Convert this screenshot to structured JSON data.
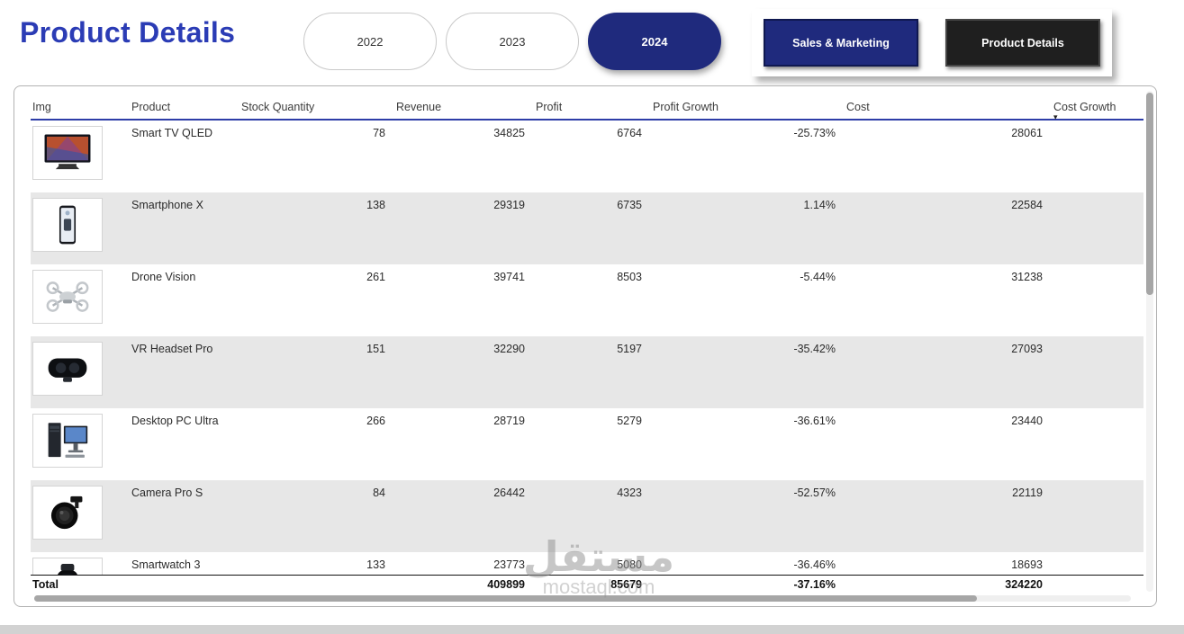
{
  "page": {
    "title": "Product Details"
  },
  "year_filters": [
    {
      "label": "2022",
      "selected": false
    },
    {
      "label": "2023",
      "selected": false
    },
    {
      "label": "2024",
      "selected": true
    }
  ],
  "nav_buttons": [
    {
      "label": "Sales & Marketing"
    },
    {
      "label": "Product Details"
    }
  ],
  "table": {
    "columns": [
      "Img",
      "Product",
      "Stock Quantity",
      "Revenue",
      "Profit",
      "Profit Growth",
      "Cost",
      "Cost Growth"
    ],
    "sorted_by": "Cost Growth",
    "sort_direction": "descending",
    "rows": [
      {
        "icon": "tv",
        "product": "Smart TV QLED",
        "stock": "78",
        "revenue": "34825",
        "profit": "6764",
        "profit_growth": "-25.73%",
        "cost": "28061",
        "cost_growth": ""
      },
      {
        "icon": "phone",
        "product": "Smartphone X",
        "stock": "138",
        "revenue": "29319",
        "profit": "6735",
        "profit_growth": "1.14%",
        "cost": "22584",
        "cost_growth": ""
      },
      {
        "icon": "drone",
        "product": "Drone Vision",
        "stock": "261",
        "revenue": "39741",
        "profit": "8503",
        "profit_growth": "-5.44%",
        "cost": "31238",
        "cost_growth": ""
      },
      {
        "icon": "vr",
        "product": "VR Headset Pro",
        "stock": "151",
        "revenue": "32290",
        "profit": "5197",
        "profit_growth": "-35.42%",
        "cost": "27093",
        "cost_growth": ""
      },
      {
        "icon": "pc",
        "product": "Desktop PC Ultra",
        "stock": "266",
        "revenue": "28719",
        "profit": "5279",
        "profit_growth": "-36.61%",
        "cost": "23440",
        "cost_growth": ""
      },
      {
        "icon": "camera",
        "product": "Camera Pro S",
        "stock": "84",
        "revenue": "26442",
        "profit": "4323",
        "profit_growth": "-52.57%",
        "cost": "22119",
        "cost_growth": ""
      },
      {
        "icon": "watch",
        "product": "Smartwatch 3",
        "stock": "133",
        "revenue": "23773",
        "profit": "5080",
        "profit_growth": "-36.46%",
        "cost": "18693",
        "cost_growth": ""
      }
    ],
    "total": {
      "label": "Total",
      "product": "",
      "stock": "",
      "revenue": "409899",
      "profit": "85679",
      "profit_growth": "-37.16%",
      "cost": "324220",
      "cost_growth": ""
    }
  },
  "watermark": {
    "line1": "مستقل",
    "line2": "mostaql.com"
  },
  "icons": {
    "sort_descending": "▾"
  },
  "colors": {
    "title_blue": "#2b3cb5",
    "navy": "#1f2a7d",
    "dark_button": "#1f1f1f",
    "row_alt": "#e7e7e7",
    "header_line": "#2e3da8",
    "scrollbar_thumb": "#a6a6a6",
    "watermark_gray": "#8f8f8f",
    "bottom_strip": "#d2d2d2"
  }
}
